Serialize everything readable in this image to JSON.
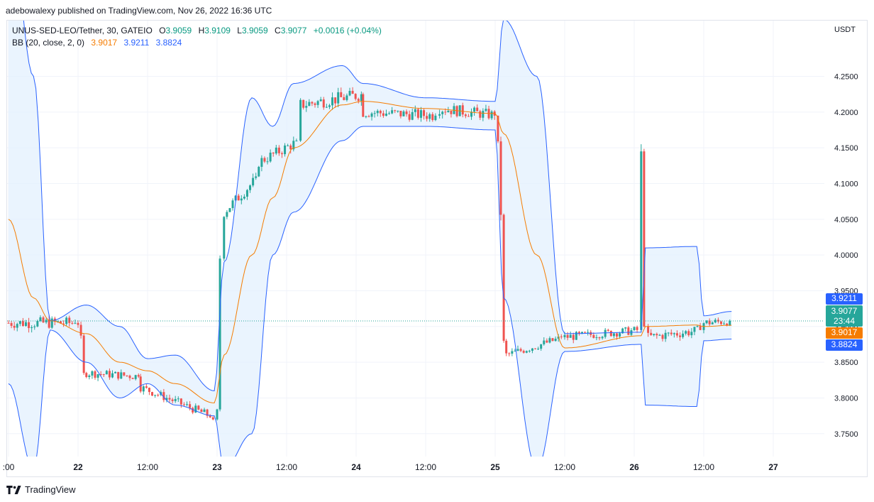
{
  "publisher_line": "adebowalexy published on TradingView.com, Nov 26, 2022 16:36 UTC",
  "legend": {
    "symbol": "UNUS-SED-LEO/Tether, 30, GATEIO",
    "open_label": "O",
    "open": "3.9059",
    "high_label": "H",
    "high": "3.9109",
    "low_label": "L",
    "low": "3.9059",
    "close_label": "C",
    "close": "3.9077",
    "change": "+0.0016 (+0.04%)",
    "bb_label": "BB (20, close, 2, 0)",
    "bb_mid": "3.9017",
    "bb_upper": "3.9211",
    "bb_lower": "3.8824"
  },
  "currency": "USDT",
  "price_tags": {
    "upper": "3.9211",
    "close": "3.9077",
    "countdown": "23:44",
    "mid": "3.9017",
    "lower": "3.8824"
  },
  "brand": "TradingView",
  "colors": {
    "up": "#26a69a",
    "down": "#ef5350",
    "basis": "#f57c00",
    "band": "#2962ff",
    "band_fill": "#e3f0fd",
    "grid": "#f0f3fa"
  },
  "chart_data": {
    "type": "candlestick",
    "y_ticks": [
      "4.2500",
      "4.2000",
      "4.1500",
      "4.1000",
      "4.0500",
      "4.0000",
      "3.9500",
      "3.9000",
      "3.8500",
      "3.8000",
      "3.7500"
    ],
    "ylim": [
      3.718,
      4.328
    ],
    "x_ticks": [
      {
        "label": ":00",
        "t": 0
      },
      {
        "label": "22",
        "t": 0.5
      },
      {
        "label": "12:00",
        "t": 1.0
      },
      {
        "label": "23",
        "t": 1.5
      },
      {
        "label": "12:00",
        "t": 2.0
      },
      {
        "label": "24",
        "t": 2.5
      },
      {
        "label": "12:00",
        "t": 3.0
      },
      {
        "label": "25",
        "t": 3.5
      },
      {
        "label": "12:00",
        "t": 4.0
      },
      {
        "label": "26",
        "t": 4.5
      },
      {
        "label": "12:00",
        "t": 5.0
      },
      {
        "label": "27",
        "t": 5.5
      }
    ],
    "last_close": 3.9077,
    "segments": [
      {
        "t0": 0.0,
        "t1": 0.5,
        "p0": 3.905,
        "p1": 3.905,
        "noise": 0.008,
        "spike": 0
      },
      {
        "t0": 0.5,
        "t1": 0.56,
        "p0": 3.905,
        "p1": 3.835,
        "noise": 0.006,
        "spike": 0
      },
      {
        "t0": 0.56,
        "t1": 0.95,
        "p0": 3.835,
        "p1": 3.83,
        "noise": 0.006,
        "spike": 0
      },
      {
        "t0": 0.95,
        "t1": 1.45,
        "p0": 3.815,
        "p1": 3.775,
        "noise": 0.006,
        "spike": 0
      },
      {
        "t0": 1.45,
        "t1": 1.5,
        "p0": 3.775,
        "p1": 3.77,
        "noise": 0.004,
        "spike": 0
      },
      {
        "t0": 1.5,
        "t1": 1.55,
        "p0": 3.78,
        "p1": 3.995,
        "noise": 0.006,
        "spike": 0
      },
      {
        "t0": 1.55,
        "t1": 1.8,
        "p0": 4.06,
        "p1": 4.11,
        "noise": 0.008,
        "spike": 0
      },
      {
        "t0": 1.8,
        "t1": 2.1,
        "p0": 4.13,
        "p1": 4.16,
        "noise": 0.008,
        "spike": 0
      },
      {
        "t0": 2.1,
        "t1": 2.55,
        "p0": 4.21,
        "p1": 4.225,
        "noise": 0.009,
        "spike": 0
      },
      {
        "t0": 2.55,
        "t1": 3.1,
        "p0": 4.2,
        "p1": 4.195,
        "noise": 0.008,
        "spike": 0
      },
      {
        "t0": 3.1,
        "t1": 3.52,
        "p0": 4.205,
        "p1": 4.195,
        "noise": 0.008,
        "spike": 0
      },
      {
        "t0": 3.52,
        "t1": 3.58,
        "p0": 4.15,
        "p1": 3.88,
        "noise": 0.01,
        "spike": 0
      },
      {
        "t0": 3.58,
        "t1": 4.0,
        "p0": 3.86,
        "p1": 3.885,
        "noise": 0.006,
        "spike": 0
      },
      {
        "t0": 4.0,
        "t1": 4.55,
        "p0": 3.885,
        "p1": 3.895,
        "noise": 0.006,
        "spike": 0
      },
      {
        "t0": 4.55,
        "t1": 4.6,
        "p0": 3.895,
        "p1": 3.9,
        "noise": 0.006,
        "spike": 4.155
      },
      {
        "t0": 4.6,
        "t1": 5.0,
        "p0": 3.885,
        "p1": 3.895,
        "noise": 0.007,
        "spike": 0
      },
      {
        "t0": 5.0,
        "t1": 5.2,
        "p0": 3.905,
        "p1": 3.9077,
        "noise": 0.006,
        "spike": 0
      }
    ],
    "bands": [
      {
        "t": 0.0,
        "upper": 4.48,
        "mid": 4.05,
        "lower": 3.82
      },
      {
        "t": 0.18,
        "upper": 4.25,
        "mid": 3.94,
        "lower": 3.7
      },
      {
        "t": 0.3,
        "upper": 3.908,
        "mid": 3.908,
        "lower": 3.895
      },
      {
        "t": 0.56,
        "upper": 3.93,
        "mid": 3.89,
        "lower": 3.85
      },
      {
        "t": 0.8,
        "upper": 3.9,
        "mid": 3.85,
        "lower": 3.8
      },
      {
        "t": 1.0,
        "upper": 3.855,
        "mid": 3.838,
        "lower": 3.82
      },
      {
        "t": 1.2,
        "upper": 3.86,
        "mid": 3.82,
        "lower": 3.79
      },
      {
        "t": 1.48,
        "upper": 3.81,
        "mid": 3.793,
        "lower": 3.775
      },
      {
        "t": 1.55,
        "upper": 3.99,
        "mid": 3.86,
        "lower": 3.7
      },
      {
        "t": 1.75,
        "upper": 4.22,
        "mid": 4.0,
        "lower": 3.75
      },
      {
        "t": 1.9,
        "upper": 4.18,
        "mid": 4.08,
        "lower": 4.0
      },
      {
        "t": 2.05,
        "upper": 4.24,
        "mid": 4.15,
        "lower": 4.06
      },
      {
        "t": 2.4,
        "upper": 4.265,
        "mid": 4.21,
        "lower": 4.16
      },
      {
        "t": 2.55,
        "upper": 4.24,
        "mid": 4.215,
        "lower": 4.18
      },
      {
        "t": 3.0,
        "upper": 4.22,
        "mid": 4.205,
        "lower": 4.18
      },
      {
        "t": 3.5,
        "upper": 4.215,
        "mid": 4.198,
        "lower": 4.175
      },
      {
        "t": 3.56,
        "upper": 4.33,
        "mid": 4.17,
        "lower": 3.94
      },
      {
        "t": 3.8,
        "upper": 4.25,
        "mid": 4.0,
        "lower": 3.7
      },
      {
        "t": 4.0,
        "upper": 3.89,
        "mid": 3.87,
        "lower": 3.865
      },
      {
        "t": 4.55,
        "upper": 3.892,
        "mid": 3.887,
        "lower": 3.875
      },
      {
        "t": 4.58,
        "upper": 4.01,
        "mid": 3.9,
        "lower": 3.79
      },
      {
        "t": 4.95,
        "upper": 4.012,
        "mid": 3.902,
        "lower": 3.788
      },
      {
        "t": 5.0,
        "upper": 3.915,
        "mid": 3.9,
        "lower": 3.88
      },
      {
        "t": 5.2,
        "upper": 3.9211,
        "mid": 3.9017,
        "lower": 3.8824
      }
    ]
  }
}
